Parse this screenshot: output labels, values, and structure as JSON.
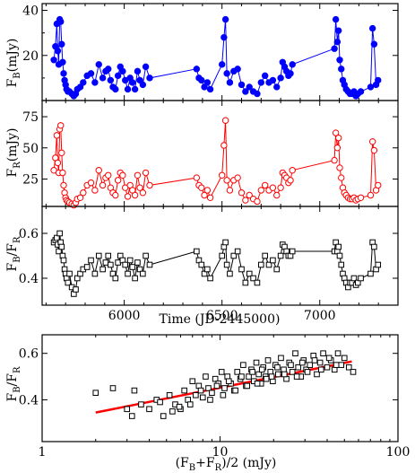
{
  "chart_data": [
    {
      "id": "fb",
      "type": "line",
      "ylabel_main": "F",
      "ylabel_sub": "B",
      "ylabel_unit": "(mJy)",
      "xlim": [
        5580,
        7400
      ],
      "ylim": [
        0,
        43
      ],
      "yticks": [
        20,
        40
      ],
      "yminor": [
        10,
        30
      ],
      "xticks": [
        6000,
        6500,
        7000
      ],
      "xticklabels": [
        "",
        "",
        ""
      ],
      "marker": "filled-circle",
      "color": "#0000ff",
      "x": [
        5640,
        5648,
        5655,
        5660,
        5665,
        5670,
        5675,
        5680,
        5685,
        5690,
        5695,
        5700,
        5705,
        5712,
        5720,
        5732,
        5742,
        5752,
        5760,
        5775,
        5790,
        5810,
        5830,
        5850,
        5870,
        5890,
        5905,
        5918,
        5930,
        5942,
        5955,
        5968,
        5980,
        5992,
        6005,
        6018,
        6030,
        6042,
        6055,
        6068,
        6080,
        6095,
        6110,
        6130,
        6370,
        6382,
        6395,
        6410,
        6425,
        6440,
        6500,
        6510,
        6518,
        6525,
        6540,
        6560,
        6580,
        6600,
        6620,
        6640,
        6660,
        6680,
        6700,
        6720,
        6740,
        6760,
        6780,
        6800,
        6810,
        6820,
        6830,
        6840,
        6850,
        6860,
        7075,
        7082,
        7090,
        7096,
        7102,
        7110,
        7118,
        7126,
        7135,
        7145,
        7155,
        7165,
        7175,
        7185,
        7195,
        7210,
        7260,
        7270,
        7278,
        7288,
        7298
      ],
      "y": [
        18,
        24,
        34,
        22,
        16,
        36,
        35,
        25,
        17,
        12,
        9,
        7,
        5,
        4,
        4,
        3,
        2,
        3,
        5,
        6,
        8,
        11,
        12,
        8,
        16,
        10,
        13,
        14,
        9,
        6,
        5,
        11,
        15,
        13,
        9,
        5,
        10,
        8,
        5,
        13,
        9,
        7,
        15,
        10,
        14,
        10,
        9,
        6,
        8,
        5,
        16,
        28,
        36,
        12,
        8,
        13,
        14,
        7,
        4,
        6,
        4,
        3,
        8,
        11,
        8,
        9,
        6,
        10,
        17,
        15,
        13,
        11,
        12,
        16,
        23,
        36,
        26,
        31,
        18,
        14,
        9,
        7,
        5,
        4,
        3,
        3,
        4,
        2,
        3,
        4,
        6,
        32,
        25,
        7,
        9
      ]
    },
    {
      "id": "fr",
      "type": "line",
      "ylabel_main": "F",
      "ylabel_sub": "R",
      "ylabel_unit": "(mJy)",
      "xlim": [
        5580,
        7400
      ],
      "ylim": [
        3,
        88
      ],
      "yticks": [
        25,
        50,
        75
      ],
      "xticks": [
        6000,
        6500,
        7000
      ],
      "xticklabels": [
        "",
        "",
        ""
      ],
      "marker": "open-circle",
      "color": "#ff0000",
      "x": [
        5640,
        5648,
        5655,
        5660,
        5665,
        5670,
        5675,
        5680,
        5685,
        5690,
        5695,
        5700,
        5705,
        5712,
        5720,
        5732,
        5742,
        5752,
        5760,
        5775,
        5790,
        5810,
        5830,
        5850,
        5870,
        5890,
        5905,
        5918,
        5930,
        5942,
        5955,
        5968,
        5980,
        5992,
        6005,
        6018,
        6030,
        6042,
        6055,
        6068,
        6080,
        6095,
        6110,
        6130,
        6370,
        6382,
        6395,
        6410,
        6425,
        6440,
        6500,
        6510,
        6518,
        6525,
        6540,
        6560,
        6580,
        6600,
        6620,
        6640,
        6660,
        6680,
        6700,
        6720,
        6740,
        6760,
        6780,
        6800,
        6810,
        6820,
        6830,
        6840,
        6850,
        6860,
        7075,
        7082,
        7090,
        7096,
        7102,
        7110,
        7118,
        7126,
        7135,
        7145,
        7155,
        7165,
        7175,
        7185,
        7195,
        7210,
        7260,
        7270,
        7278,
        7288,
        7298
      ],
      "y": [
        32,
        42,
        60,
        38,
        30,
        65,
        68,
        46,
        30,
        20,
        14,
        10,
        8,
        7,
        6,
        5,
        4,
        6,
        9,
        10,
        14,
        20,
        22,
        16,
        32,
        20,
        26,
        28,
        18,
        14,
        12,
        24,
        30,
        28,
        18,
        11,
        20,
        16,
        12,
        28,
        18,
        14,
        30,
        20,
        26,
        20,
        18,
        12,
        16,
        10,
        28,
        52,
        72,
        24,
        16,
        24,
        26,
        14,
        8,
        12,
        9,
        7,
        16,
        20,
        16,
        18,
        12,
        18,
        30,
        28,
        26,
        22,
        24,
        32,
        40,
        62,
        50,
        58,
        34,
        26,
        18,
        14,
        12,
        10,
        9,
        9,
        10,
        8,
        9,
        10,
        12,
        55,
        48,
        16,
        20
      ]
    },
    {
      "id": "ratio",
      "type": "line",
      "ylabel_main": "F",
      "ylabel_sub": "B",
      "ylabel_slash": "/F",
      "ylabel_sub2": "R",
      "xlabel": "Time (JD-2445000)",
      "xlim": [
        5580,
        7400
      ],
      "ylim": [
        0.28,
        0.72
      ],
      "yticks": [
        0.4,
        0.6
      ],
      "yticklabels": [
        "0.4",
        "0.6"
      ],
      "xticks": [
        6000,
        6500,
        7000
      ],
      "xticklabels": [
        "6000",
        "6500",
        "7000"
      ],
      "marker": "open-square",
      "color": "#000000",
      "x": [
        5640,
        5648,
        5655,
        5660,
        5665,
        5670,
        5675,
        5680,
        5685,
        5690,
        5695,
        5700,
        5705,
        5712,
        5720,
        5732,
        5742,
        5752,
        5760,
        5775,
        5790,
        5810,
        5830,
        5850,
        5870,
        5890,
        5905,
        5918,
        5930,
        5942,
        5955,
        5968,
        5980,
        5992,
        6005,
        6018,
        6030,
        6042,
        6055,
        6068,
        6080,
        6095,
        6110,
        6130,
        6370,
        6382,
        6395,
        6410,
        6425,
        6440,
        6500,
        6510,
        6518,
        6525,
        6540,
        6560,
        6580,
        6600,
        6620,
        6640,
        6660,
        6680,
        6700,
        6720,
        6740,
        6760,
        6780,
        6800,
        6810,
        6820,
        6830,
        6840,
        6850,
        6860,
        7075,
        7082,
        7090,
        7096,
        7102,
        7110,
        7118,
        7126,
        7135,
        7145,
        7155,
        7165,
        7175,
        7185,
        7195,
        7210,
        7260,
        7270,
        7278,
        7288,
        7298
      ],
      "y": [
        0.56,
        0.57,
        0.58,
        0.55,
        0.52,
        0.6,
        0.56,
        0.54,
        0.5,
        0.48,
        0.44,
        0.42,
        0.4,
        0.38,
        0.42,
        0.36,
        0.33,
        0.35,
        0.4,
        0.42,
        0.44,
        0.45,
        0.48,
        0.42,
        0.5,
        0.44,
        0.47,
        0.5,
        0.46,
        0.42,
        0.4,
        0.47,
        0.5,
        0.48,
        0.46,
        0.42,
        0.48,
        0.45,
        0.4,
        0.47,
        0.44,
        0.42,
        0.5,
        0.46,
        0.52,
        0.48,
        0.46,
        0.42,
        0.44,
        0.4,
        0.5,
        0.54,
        0.56,
        0.46,
        0.42,
        0.5,
        0.52,
        0.44,
        0.38,
        0.42,
        0.4,
        0.38,
        0.46,
        0.5,
        0.46,
        0.48,
        0.44,
        0.5,
        0.55,
        0.54,
        0.52,
        0.5,
        0.5,
        0.52,
        0.52,
        0.56,
        0.52,
        0.54,
        0.5,
        0.46,
        0.42,
        0.4,
        0.38,
        0.36,
        0.38,
        0.38,
        0.4,
        0.37,
        0.38,
        0.4,
        0.42,
        0.56,
        0.54,
        0.44,
        0.46
      ]
    },
    {
      "id": "flux-ratio",
      "type": "scatter",
      "ylabel_main": "F",
      "ylabel_sub": "B",
      "ylabel_slash": "/F",
      "ylabel_sub2": "R",
      "xlabel_main": "(F",
      "xlabel_sub": "B",
      "xlabel_plus": "+F",
      "xlabel_sub2": "R",
      "xlabel_rest": ")/2 (mJy)",
      "xscale": "log",
      "xlim": [
        1,
        100
      ],
      "ylim": [
        0.22,
        0.68
      ],
      "xticks": [
        1,
        10,
        100
      ],
      "xticklabels": [
        "1",
        "10",
        "100"
      ],
      "yticks": [
        0.4,
        0.6
      ],
      "yticklabels": [
        "0.4",
        "0.6"
      ],
      "marker": "open-square",
      "color": "#000000",
      "fit": {
        "x": [
          2,
          55
        ],
        "y": [
          0.345,
          0.565
        ],
        "color": "#ff0000"
      },
      "x": [
        2.0,
        2.5,
        3.0,
        3.3,
        3.6,
        4.0,
        4.4,
        4.8,
        5.2,
        5.6,
        6.0,
        6.3,
        6.6,
        7.0,
        7.3,
        7.6,
        8.0,
        8.3,
        8.6,
        9.0,
        9.4,
        9.8,
        10.2,
        10.6,
        11.0,
        11.5,
        12.0,
        12.5,
        13.0,
        13.5,
        14.0,
        14.5,
        15.0,
        15.5,
        16.0,
        16.5,
        17.0,
        17.5,
        18.0,
        18.6,
        19.2,
        19.8,
        20.5,
        21.2,
        22.0,
        22.8,
        23.6,
        24.5,
        25.5,
        26.5,
        27.5,
        28.5,
        29.5,
        30.5,
        32.0,
        33.5,
        35.0,
        36.5,
        38.0,
        40.0,
        42.0,
        44.0,
        46.0,
        48.0,
        50.0,
        53.0,
        56.0,
        6.8,
        7.8,
        8.8,
        9.6,
        10.4,
        11.2,
        12.2,
        13.2,
        14.2,
        15.2,
        16.2,
        17.2,
        18.2,
        19.5,
        21.0,
        23.0,
        25.0,
        27.0,
        29.0,
        31.0,
        34.0,
        37.0,
        41.0,
        45.0,
        3.2,
        4.6,
        5.4,
        5.9
      ],
      "y": [
        0.43,
        0.45,
        0.36,
        0.44,
        0.38,
        0.36,
        0.4,
        0.33,
        0.42,
        0.38,
        0.36,
        0.44,
        0.4,
        0.48,
        0.42,
        0.46,
        0.41,
        0.5,
        0.45,
        0.43,
        0.49,
        0.47,
        0.52,
        0.45,
        0.5,
        0.47,
        0.44,
        0.52,
        0.49,
        0.55,
        0.46,
        0.5,
        0.53,
        0.48,
        0.56,
        0.51,
        0.47,
        0.54,
        0.5,
        0.57,
        0.52,
        0.48,
        0.55,
        0.51,
        0.58,
        0.53,
        0.49,
        0.56,
        0.52,
        0.6,
        0.54,
        0.5,
        0.57,
        0.53,
        0.55,
        0.59,
        0.51,
        0.56,
        0.6,
        0.54,
        0.57,
        0.53,
        0.6,
        0.55,
        0.58,
        0.54,
        0.52,
        0.38,
        0.44,
        0.4,
        0.46,
        0.42,
        0.48,
        0.44,
        0.5,
        0.46,
        0.52,
        0.47,
        0.53,
        0.49,
        0.5,
        0.54,
        0.51,
        0.55,
        0.5,
        0.56,
        0.52,
        0.57,
        0.53,
        0.58,
        0.55,
        0.33,
        0.39,
        0.35,
        0.37
      ]
    }
  ]
}
